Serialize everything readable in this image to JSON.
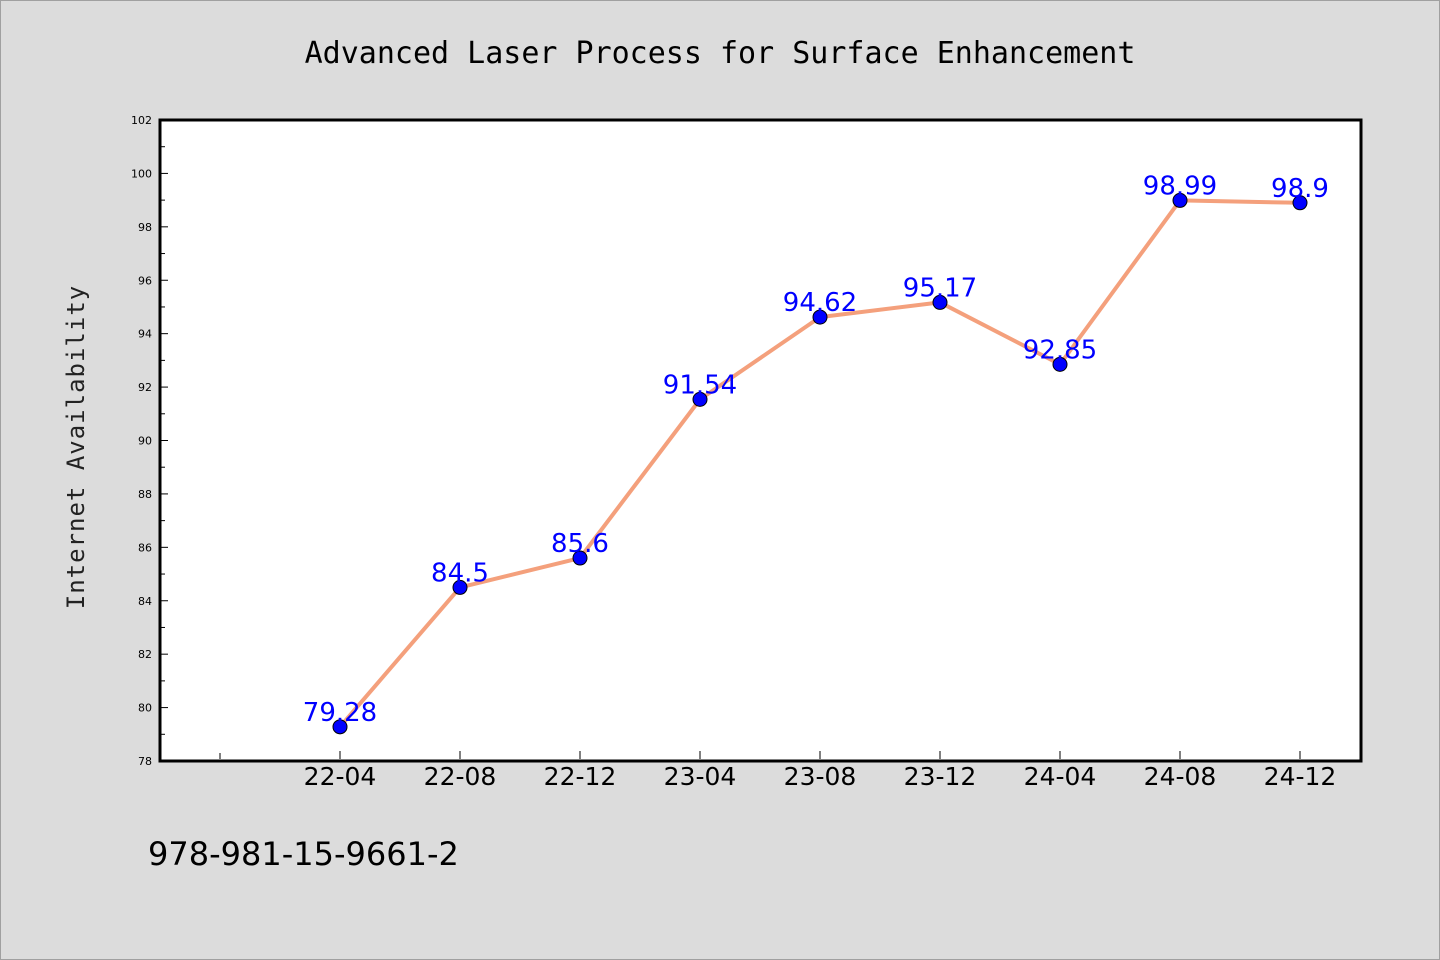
{
  "chart_data": {
    "type": "line",
    "title": "Advanced Laser Process for Surface Enhancement",
    "xlabel": "",
    "ylabel": "Internet Availability",
    "categories": [
      "22-04",
      "22-08",
      "22-12",
      "23-04",
      "23-08",
      "23-12",
      "24-04",
      "24-08",
      "24-12"
    ],
    "series": [
      {
        "values": [
          79.28,
          84.5,
          85.6,
          91.54,
          94.62,
          95.17,
          92.85,
          98.99,
          98.9
        ],
        "data_labels": [
          "79.28",
          "84.5",
          "85.6",
          "91.54",
          "94.62",
          "95.17",
          "92.85",
          "98.99",
          "98.9"
        ],
        "line_color": "#f4a07c",
        "marker_color": "#0000ff"
      }
    ],
    "ylim": [
      78,
      102
    ],
    "yticks": [
      78,
      80,
      82,
      84,
      86,
      88,
      90,
      92,
      94,
      96,
      98,
      100,
      102
    ],
    "ytick_labels": [
      "78",
      "80",
      "82",
      "84",
      "86",
      "88",
      "90",
      "92",
      "94",
      "96",
      "98",
      "100",
      "102"
    ],
    "grid": false,
    "legend": "none"
  },
  "footnote": "978-981-15-9661-2",
  "colors": {
    "background": "#dcdcdc",
    "plot_area": "#ffffff",
    "data_label": "#0000ff"
  }
}
